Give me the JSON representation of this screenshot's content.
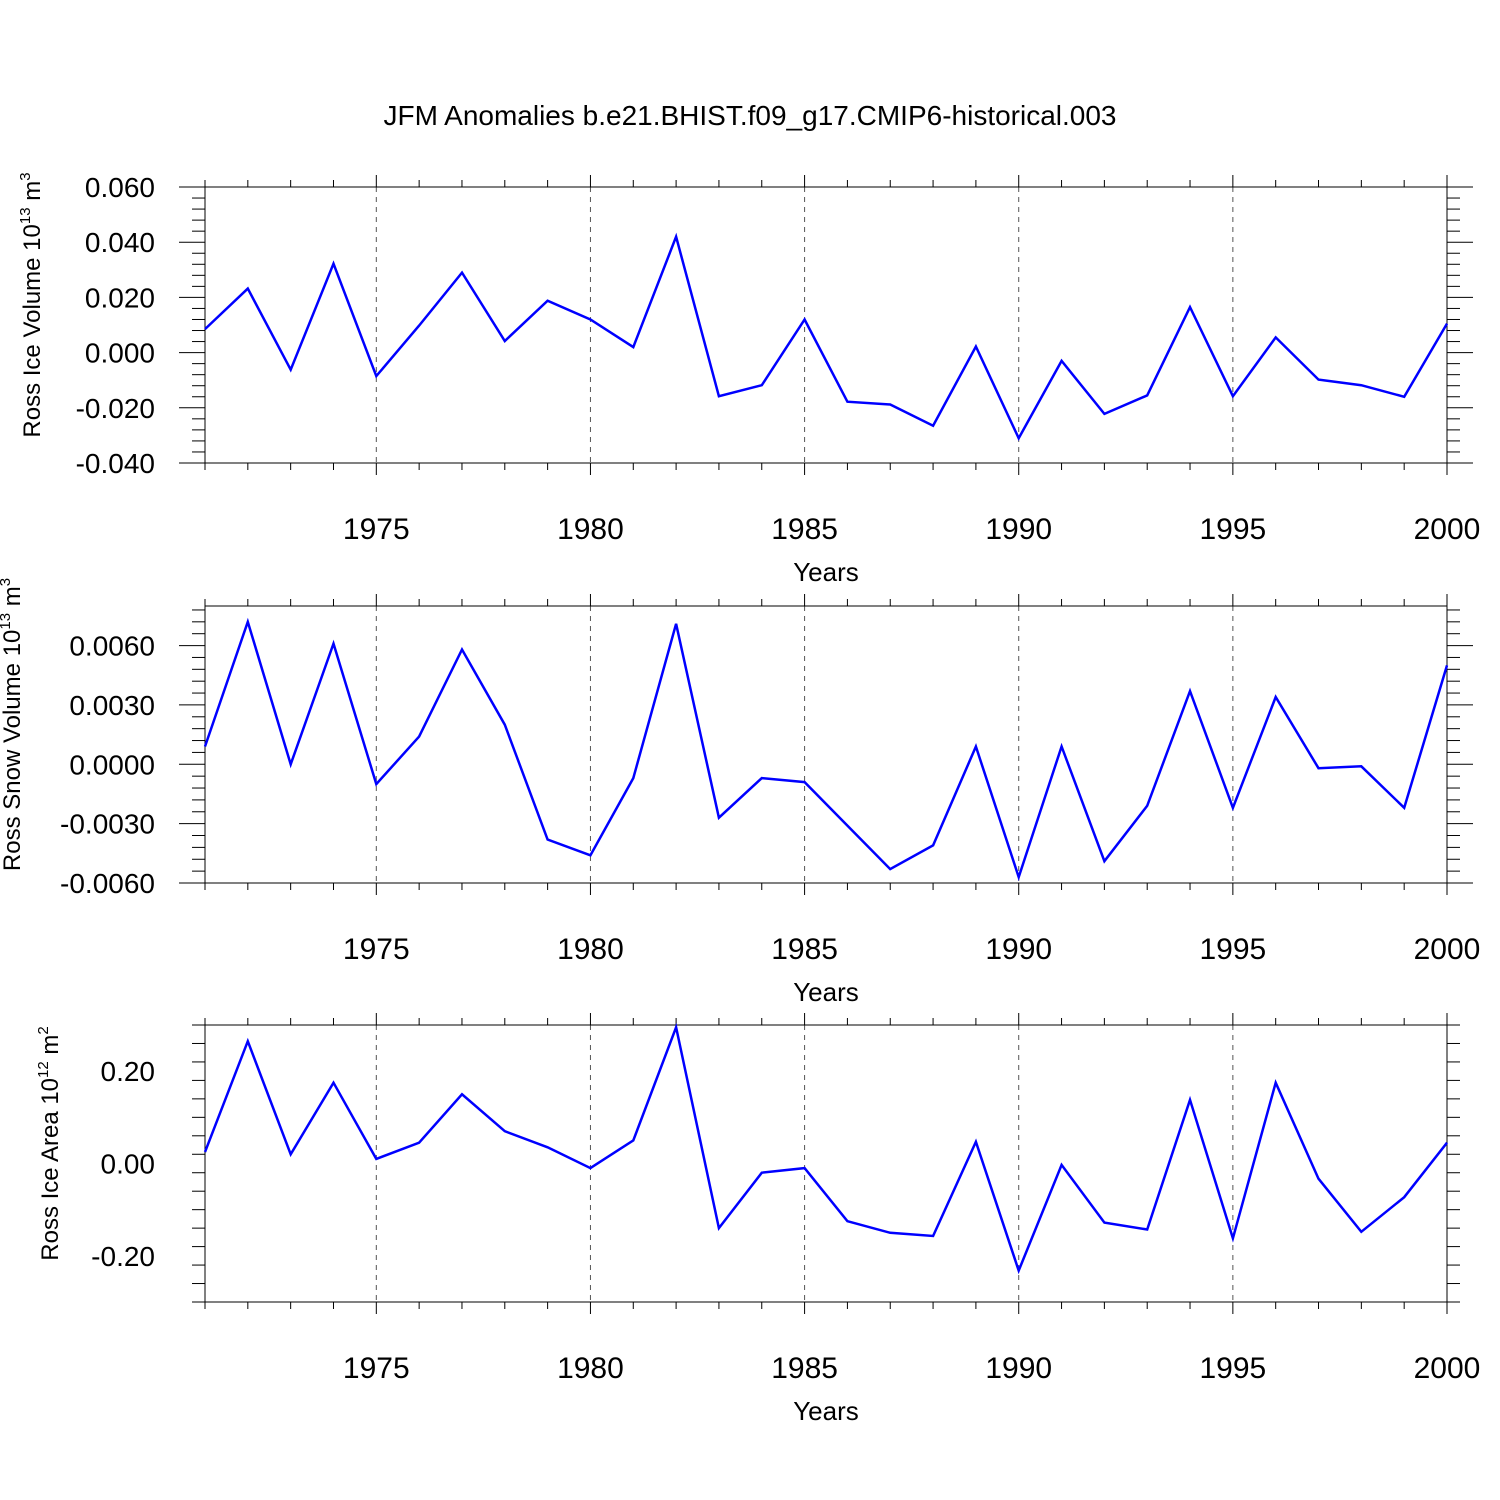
{
  "figure_title": "JFM Anomalies b.e21.BHIST.f09_g17.CMIP6-historical.003",
  "colors": {
    "line": "#0000ff",
    "axis": "#000000",
    "grid": "#555555"
  },
  "chart_data": [
    {
      "type": "line",
      "title": "JFM Anomalies b.e21.BHIST.f09_g17.CMIP6-historical.003",
      "xlabel": "Years",
      "ylabel": {
        "main": "Ross Ice Volume 10",
        "sup1": "13",
        "mid": " m",
        "sup2": "3"
      },
      "xlim": [
        1971,
        2000
      ],
      "ylim": [
        -0.04,
        0.06
      ],
      "xticks": [
        1975,
        1980,
        1985,
        1990,
        1995,
        2000
      ],
      "yticks": [
        0.06,
        0.04,
        0.02,
        0.0,
        -0.02,
        -0.04
      ],
      "ytick_labels": [
        "0.060",
        "0.040",
        "0.020",
        "0.000",
        "-0.020",
        "-0.040"
      ],
      "grid": "vertical dashed at major x ticks",
      "x": [
        1971,
        1972,
        1973,
        1974,
        1975,
        1976,
        1977,
        1978,
        1979,
        1980,
        1981,
        1982,
        1983,
        1984,
        1985,
        1986,
        1987,
        1988,
        1989,
        1990,
        1991,
        1992,
        1993,
        1994,
        1995,
        1996,
        1997,
        1998,
        1999,
        2000
      ],
      "series": [
        {
          "values": [
            0.0085,
            0.0232,
            -0.0062,
            0.0322,
            -0.0085,
            0.0098,
            0.029,
            0.0042,
            0.0188,
            0.012,
            0.002,
            0.042,
            -0.0158,
            -0.0118,
            0.012,
            -0.0178,
            -0.0188,
            -0.0265,
            0.0022,
            -0.031,
            -0.003,
            -0.0222,
            -0.0155,
            0.0165,
            -0.0158,
            0.0055,
            -0.0098,
            -0.0118,
            -0.016,
            0.0105
          ]
        }
      ]
    },
    {
      "type": "line",
      "xlabel": "Years",
      "ylabel": {
        "main": "Ross Snow Volume 10",
        "sup1": "13",
        "mid": " m",
        "sup2": "3"
      },
      "xlim": [
        1971,
        2000
      ],
      "ylim": [
        -0.006,
        0.008
      ],
      "xticks": [
        1975,
        1980,
        1985,
        1990,
        1995,
        2000
      ],
      "yticks": [
        0.006,
        0.003,
        0.0,
        -0.003,
        -0.006
      ],
      "ytick_labels": [
        "0.0060",
        "0.0030",
        "0.0000",
        "-0.0030",
        "-0.0060"
      ],
      "grid": "vertical dashed at major x ticks",
      "x": [
        1971,
        1972,
        1973,
        1974,
        1975,
        1976,
        1977,
        1978,
        1979,
        1980,
        1981,
        1982,
        1983,
        1984,
        1985,
        1986,
        1987,
        1988,
        1989,
        1990,
        1991,
        1992,
        1993,
        1994,
        1995,
        1996,
        1997,
        1998,
        1999,
        2000
      ],
      "series": [
        {
          "values": [
            0.0009,
            0.0072,
            0.0,
            0.0061,
            -0.001,
            0.0014,
            0.0058,
            0.002,
            -0.0038,
            -0.0046,
            -0.0007,
            0.0071,
            -0.0027,
            -0.0007,
            -0.0009,
            -0.0031,
            -0.0053,
            -0.0041,
            0.0009,
            -0.0057,
            0.0009,
            -0.0049,
            -0.0021,
            0.0037,
            -0.0022,
            0.0034,
            -0.0002,
            -0.0001,
            -0.0022,
            0.005
          ]
        }
      ]
    },
    {
      "type": "line",
      "xlabel": "Years",
      "ylabel": {
        "main": "Ross Ice Area 10",
        "sup1": "12",
        "mid": " m",
        "sup2": "2"
      },
      "xlim": [
        1971,
        2000
      ],
      "ylim": [
        -0.3,
        0.3
      ],
      "xticks": [
        1975,
        1980,
        1985,
        1990,
        1995,
        2000
      ],
      "yticks": [
        0.2,
        0.0,
        -0.2
      ],
      "ytick_labels": [
        "0.20",
        "0.00",
        "-0.20"
      ],
      "grid": "vertical dashed at major x ticks",
      "x": [
        1971,
        1972,
        1973,
        1974,
        1975,
        1976,
        1977,
        1978,
        1979,
        1980,
        1981,
        1982,
        1983,
        1984,
        1985,
        1986,
        1987,
        1988,
        1989,
        1990,
        1991,
        1992,
        1993,
        1994,
        1995,
        1996,
        1997,
        1998,
        1999,
        2000
      ],
      "series": [
        {
          "values": [
            0.025,
            0.265,
            0.02,
            0.175,
            0.01,
            0.045,
            0.15,
            0.07,
            0.035,
            -0.01,
            0.05,
            0.295,
            -0.14,
            -0.02,
            -0.01,
            -0.125,
            -0.15,
            -0.157,
            0.047,
            -0.232,
            -0.003,
            -0.128,
            -0.143,
            0.138,
            -0.162,
            0.175,
            -0.033,
            -0.148,
            -0.073,
            0.045
          ]
        }
      ]
    }
  ]
}
